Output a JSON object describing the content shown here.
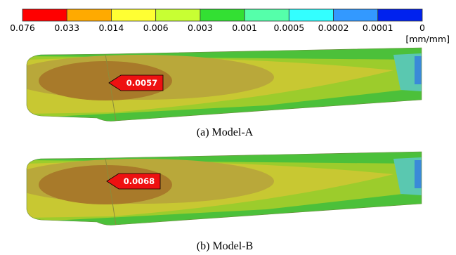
{
  "colorbar": {
    "labels": [
      "0.076",
      "0.033",
      "0.014",
      "0.006",
      "0.003",
      "0.001",
      "0.0005",
      "0.0002",
      "0.0001",
      "0"
    ],
    "colors": [
      "#ff0000",
      "#ffaa00",
      "#ffff33",
      "#c8ff33",
      "#33e033",
      "#55ffaa",
      "#33ffff",
      "#3399ff",
      "#0022ee"
    ],
    "unit": "[mm/mm]"
  },
  "panels": [
    {
      "caption": "(a)  Model-A",
      "max_label": "0.0057"
    },
    {
      "caption": "(b)  Model-B",
      "max_label": "0.0068"
    }
  ]
}
